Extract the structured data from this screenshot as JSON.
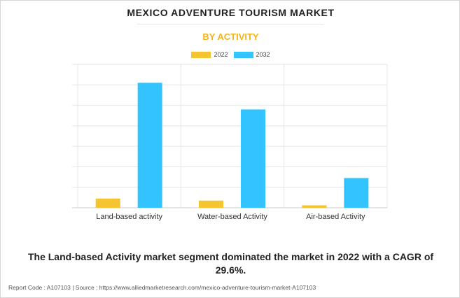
{
  "title": "MEXICO ADVENTURE TOURISM MARKET",
  "subtitle": "BY ACTIVITY",
  "colors": {
    "subtitle": "#f2b41e",
    "series_2022": "#f5c531",
    "series_2032": "#33c4ff",
    "grid": "#e5e5e5",
    "axis": "#cccccc"
  },
  "chart_data": {
    "type": "bar",
    "categories": [
      "Land-based activity",
      "Water-based Activity",
      "Air-based Activity"
    ],
    "series": [
      {
        "name": "2022",
        "values": [
          0.45,
          0.35,
          0.12
        ]
      },
      {
        "name": "2032",
        "values": [
          6.1,
          4.8,
          1.45
        ]
      }
    ],
    "ylim": [
      0,
      7
    ],
    "grid": true,
    "legend": "top-center",
    "xlabel": "",
    "ylabel": ""
  },
  "footnote": "The Land-based Activity market segment dominated the market in 2022 with a CAGR of 29.6%.",
  "source_line": "Report Code : A107103  |  Source : https://www.alliedmarketresearch.com/mexico-adventure-tourism-market-A107103"
}
